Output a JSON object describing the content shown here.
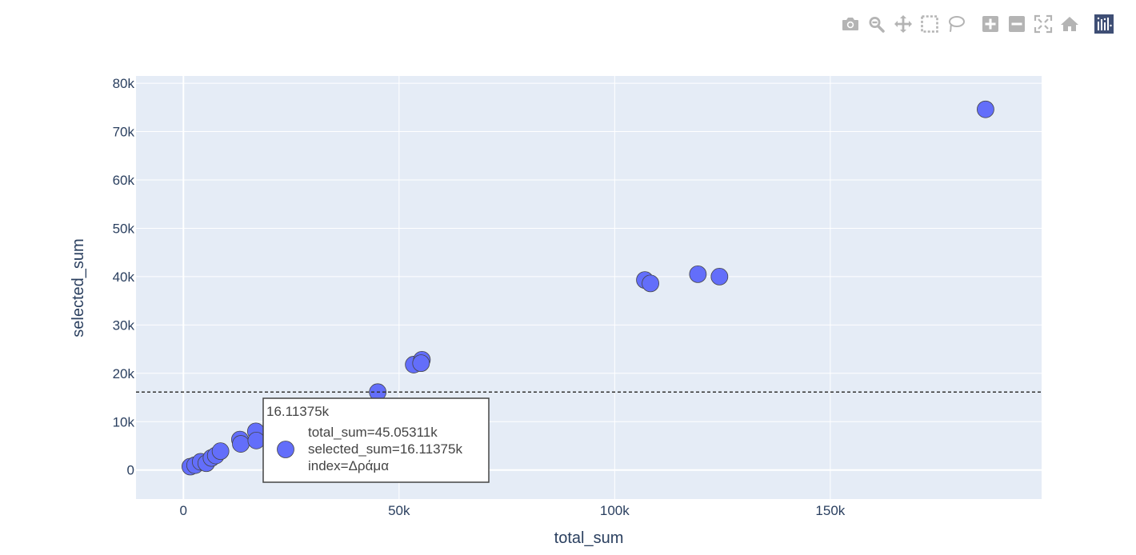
{
  "modebar": {
    "buttons": [
      {
        "name": "camera-icon",
        "title": "Download plot as a png"
      },
      {
        "name": "zoom-icon",
        "title": "Zoom"
      },
      {
        "name": "pan-icon",
        "title": "Pan"
      },
      {
        "name": "box-select-icon",
        "title": "Box Select"
      },
      {
        "name": "lasso-select-icon",
        "title": "Lasso Select"
      },
      {
        "name": "zoom-in-icon",
        "title": "Zoom in"
      },
      {
        "name": "zoom-out-icon",
        "title": "Zoom out"
      },
      {
        "name": "autoscale-icon",
        "title": "Autoscale"
      },
      {
        "name": "reset-axes-icon",
        "title": "Reset axes"
      },
      {
        "name": "plotly-logo-icon",
        "title": "Produced with Plotly"
      }
    ],
    "icon_color": "#b4b4b4",
    "logo_color": "#3f4f75"
  },
  "chart_data": {
    "type": "scatter",
    "xlabel": "total_sum",
    "ylabel": "selected_sum",
    "xlim": [
      -11000,
      199000
    ],
    "ylim": [
      -6000,
      81500
    ],
    "x_ticks": [
      0,
      50000,
      100000,
      150000
    ],
    "x_tick_labels": [
      "0",
      "50k",
      "100k",
      "150k"
    ],
    "y_ticks": [
      0,
      10000,
      20000,
      30000,
      40000,
      50000,
      60000,
      70000,
      80000
    ],
    "y_tick_labels": [
      "0",
      "10k",
      "20k",
      "30k",
      "40k",
      "50k",
      "60k",
      "70k",
      "80k"
    ],
    "grid": true,
    "marker_color": "#636efa",
    "plot_bg": "#e5ecf6",
    "points": [
      {
        "x": 1600,
        "y": 700
      },
      {
        "x": 2700,
        "y": 1000
      },
      {
        "x": 4000,
        "y": 1700
      },
      {
        "x": 5300,
        "y": 1400
      },
      {
        "x": 6500,
        "y": 2500
      },
      {
        "x": 7500,
        "y": 3000
      },
      {
        "x": 8600,
        "y": 3900
      },
      {
        "x": 13100,
        "y": 6300
      },
      {
        "x": 13300,
        "y": 5400
      },
      {
        "x": 16800,
        "y": 8000
      },
      {
        "x": 16900,
        "y": 6100
      },
      {
        "x": 45053.11,
        "y": 16113.75
      },
      {
        "x": 53400,
        "y": 21800
      },
      {
        "x": 55300,
        "y": 22800
      },
      {
        "x": 55100,
        "y": 22100
      },
      {
        "x": 107000,
        "y": 39300
      },
      {
        "x": 108300,
        "y": 38600
      },
      {
        "x": 119300,
        "y": 40500
      },
      {
        "x": 124300,
        "y": 40000
      },
      {
        "x": 186000,
        "y": 74600
      }
    ],
    "hover_line_y": 16113.75,
    "hover": {
      "header": "16.11375k",
      "lines": [
        "total_sum=45.05311k",
        "selected_sum=16.11375k",
        "index=Δράμα"
      ]
    }
  }
}
